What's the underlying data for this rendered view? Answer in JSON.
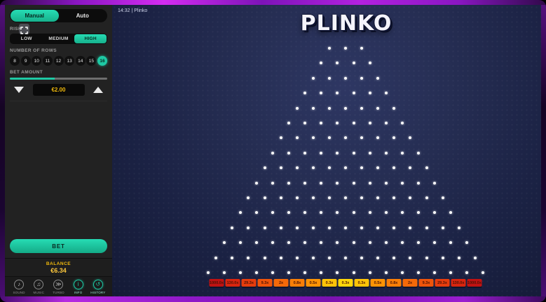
{
  "header": {
    "time_title": "14:32 | Plinko"
  },
  "logo_text": "PLINKO",
  "sidebar": {
    "mode": {
      "manual": "Manual",
      "auto": "Auto",
      "selected": "Manual"
    },
    "risk": {
      "label": "RISK",
      "options": [
        {
          "label": "LOW",
          "selected": false
        },
        {
          "label": "MEDIUM",
          "selected": false
        },
        {
          "label": "HIGH",
          "selected": true
        }
      ]
    },
    "rows": {
      "label": "NUMBER OF ROWS",
      "options": [
        {
          "label": "8",
          "selected": false
        },
        {
          "label": "9",
          "selected": false
        },
        {
          "label": "10",
          "selected": false
        },
        {
          "label": "11",
          "selected": false
        },
        {
          "label": "12",
          "selected": false
        },
        {
          "label": "13",
          "selected": false
        },
        {
          "label": "14",
          "selected": false
        },
        {
          "label": "15",
          "selected": false
        },
        {
          "label": "16",
          "selected": true
        }
      ]
    },
    "bet": {
      "label": "BET AMOUNT",
      "value": "€2.00",
      "progress_pct": 46
    },
    "bet_button_label": "BET",
    "balance": {
      "label": "BALANCE",
      "value": "€6.34"
    },
    "nav": [
      {
        "label": "SOUND",
        "icon": "speaker-icon",
        "glyph": "♪",
        "active": false
      },
      {
        "label": "MUSIC",
        "icon": "music-note-icon",
        "glyph": "♫",
        "active": false
      },
      {
        "label": "TURBO",
        "icon": "turbo-icon",
        "glyph": "≫",
        "active": false
      },
      {
        "label": "INFO",
        "icon": "info-icon",
        "glyph": "i",
        "active": true
      },
      {
        "label": "HISTORY",
        "icon": "history-icon",
        "glyph": "↺",
        "active": true
      }
    ]
  },
  "board": {
    "rows": 16,
    "top_pegs": 3
  },
  "multipliers": [
    {
      "label": "1000.0x",
      "bg": "#bf1212"
    },
    {
      "label": "130.0x",
      "bg": "#d8250f"
    },
    {
      "label": "29.3x",
      "bg": "#e63c0d"
    },
    {
      "label": "9.3x",
      "bg": "#ef540b"
    },
    {
      "label": "2x",
      "bg": "#f56909"
    },
    {
      "label": "0.8x",
      "bg": "#f97e07"
    },
    {
      "label": "0.5x",
      "bg": "#fc9305"
    },
    {
      "label": "0.3x",
      "bg": "#fec408"
    },
    {
      "label": "0.3x",
      "bg": "#ffd60a"
    },
    {
      "label": "0.3x",
      "bg": "#fec408"
    },
    {
      "label": "0.5x",
      "bg": "#fc9305"
    },
    {
      "label": "0.8x",
      "bg": "#f97e07"
    },
    {
      "label": "2x",
      "bg": "#f56909"
    },
    {
      "label": "9.3x",
      "bg": "#ef540b"
    },
    {
      "label": "29.3x",
      "bg": "#e63c0d"
    },
    {
      "label": "130.0x",
      "bg": "#d8250f"
    },
    {
      "label": "1000.0x",
      "bg": "#bf1212"
    }
  ],
  "colors": {
    "accent": "#1ec9a4",
    "gold": "#ffc93c",
    "slot_text": "#4a1206"
  }
}
